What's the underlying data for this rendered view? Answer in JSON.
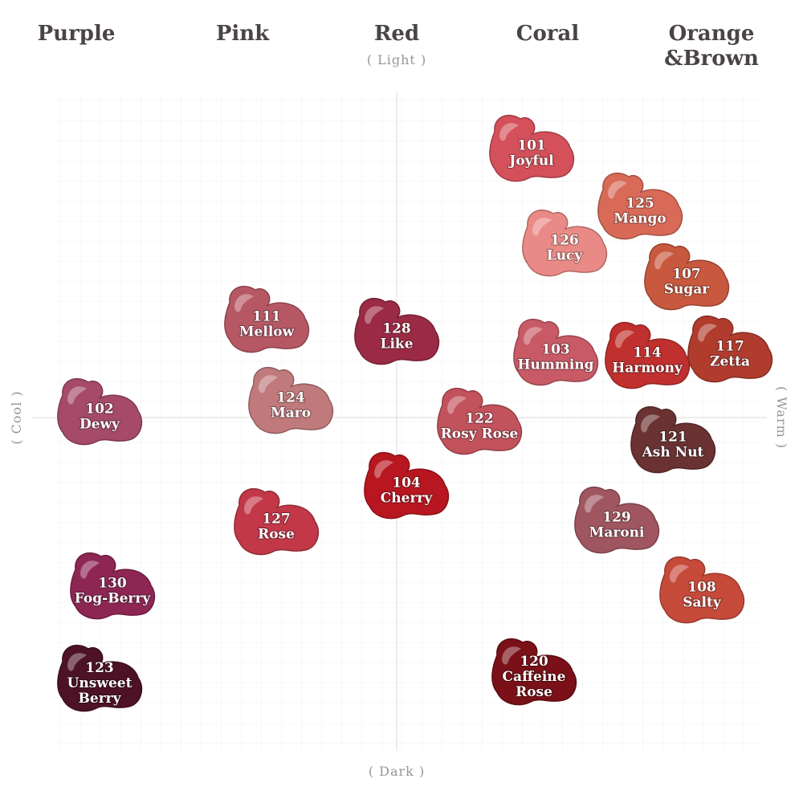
{
  "categories": {
    "purple": "Purple",
    "pink": "Pink",
    "red": "Red",
    "coral": "Coral",
    "orange_line1": "Orange",
    "orange_line2": "&Brown"
  },
  "axes": {
    "top": "( Light )",
    "bottom": "( Dark )",
    "left": "( Cool )",
    "right": "( Warm )"
  },
  "shades": [
    {
      "id": "s101",
      "number": "101",
      "name": [
        "Joyful"
      ],
      "color": "#d4505a"
    },
    {
      "id": "s125",
      "number": "125",
      "name": [
        "Mango"
      ],
      "color": "#d96a58"
    },
    {
      "id": "s126",
      "number": "126",
      "name": [
        "Lucy"
      ],
      "color": "#ea8a86"
    },
    {
      "id": "s107",
      "number": "107",
      "name": [
        "Sugar"
      ],
      "color": "#c8583e"
    },
    {
      "id": "s111",
      "number": "111",
      "name": [
        "Mellow"
      ],
      "color": "#b65864"
    },
    {
      "id": "s128",
      "number": "128",
      "name": [
        "Like"
      ],
      "color": "#9b2a44"
    },
    {
      "id": "s103",
      "number": "103",
      "name": [
        "Humming"
      ],
      "color": "#c85a66"
    },
    {
      "id": "s114",
      "number": "114",
      "name": [
        "Harmony"
      ],
      "color": "#c0302e"
    },
    {
      "id": "s117",
      "number": "117",
      "name": [
        "Zetta"
      ],
      "color": "#b03c2e"
    },
    {
      "id": "s102",
      "number": "102",
      "name": [
        "Dewy"
      ],
      "color": "#a54a68"
    },
    {
      "id": "s124",
      "number": "124",
      "name": [
        "Maro"
      ],
      "color": "#c07a7c"
    },
    {
      "id": "s122",
      "number": "122",
      "name": [
        "Rosy Rose"
      ],
      "color": "#c2525c"
    },
    {
      "id": "s121",
      "number": "121",
      "name": [
        "Ash Nut"
      ],
      "color": "#6a3232"
    },
    {
      "id": "s104",
      "number": "104",
      "name": [
        "Cherry"
      ],
      "color": "#b81620"
    },
    {
      "id": "s127",
      "number": "127",
      "name": [
        "Rose"
      ],
      "color": "#c23848"
    },
    {
      "id": "s129",
      "number": "129",
      "name": [
        "Maroni"
      ],
      "color": "#a05660"
    },
    {
      "id": "s130",
      "number": "130",
      "name": [
        "Fog-Berry"
      ],
      "color": "#8e2654"
    },
    {
      "id": "s108",
      "number": "108",
      "name": [
        "Salty"
      ],
      "color": "#c64a3a"
    },
    {
      "id": "s120",
      "number": "120",
      "name": [
        "Caffeine",
        "Rose"
      ],
      "color": "#7a1018"
    },
    {
      "id": "s123",
      "number": "123",
      "name": [
        "Unsweet",
        "Berry"
      ],
      "color": "#4e1226"
    }
  ]
}
